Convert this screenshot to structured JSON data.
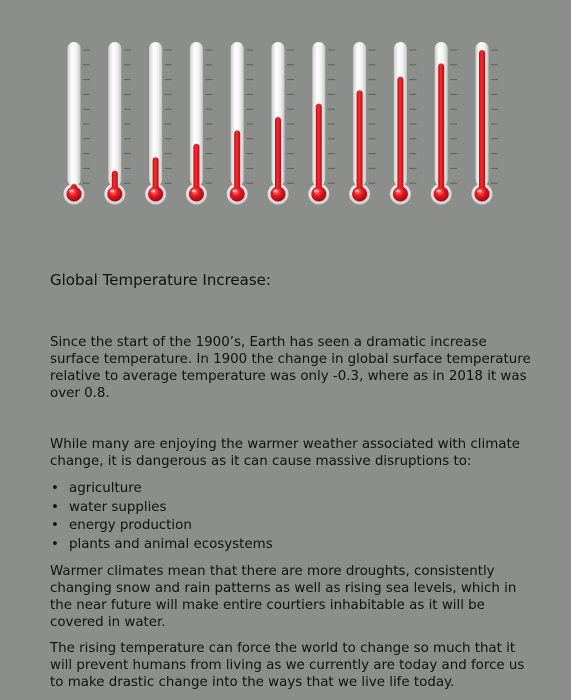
{
  "thermometer_levels": [
    0,
    0.1,
    0.2,
    0.3,
    0.4,
    0.5,
    0.6,
    0.7,
    0.8,
    0.9,
    1.0
  ],
  "colors": {
    "background": "#8b8e8b",
    "mercury": "#e3151b",
    "tube": "#f1f1f1",
    "tick": "#5c5f5c"
  },
  "heading": "Global Temperature Increase:",
  "paragraphs": {
    "intro": "Since the start of the 1900’s, Earth has seen a dramatic increase surface temperature. In 1900 the change in global surface temperature relative to average temperature was only -0.3, where as in 2018 it was over 0.8.",
    "disruptions": "While many are enjoying the warmer weather associated with climate change, it is dangerous as it can cause massive disruptions to:",
    "droughts": "Warmer climates mean that there are more droughts, consistently changing snow and rain patterns as well as rising sea levels, which in the near future will make entire courtiers inhabitable as it will be covered in water.",
    "rising": "The rising temperature can force the world to change so much that it will prevent humans from living as we currently are today and force us to make drastic change into the ways that we live life today."
  },
  "bullet_symbol": "•",
  "bullets": [
    "agriculture",
    "water supplies",
    "energy production",
    "plants and animal ecosystems"
  ]
}
